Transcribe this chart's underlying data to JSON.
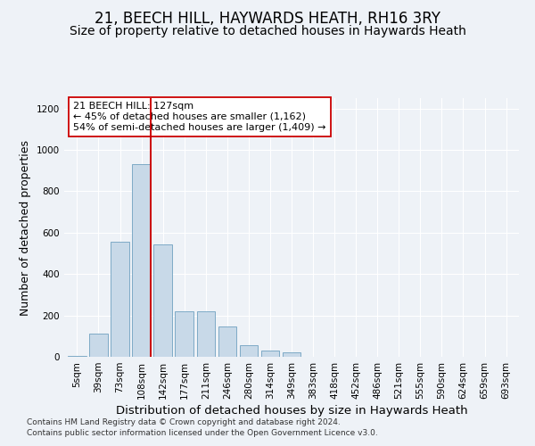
{
  "title": "21, BEECH HILL, HAYWARDS HEATH, RH16 3RY",
  "subtitle": "Size of property relative to detached houses in Haywards Heath",
  "xlabel": "Distribution of detached houses by size in Haywards Heath",
  "ylabel": "Number of detached properties",
  "categories": [
    "5sqm",
    "39sqm",
    "73sqm",
    "108sqm",
    "142sqm",
    "177sqm",
    "211sqm",
    "246sqm",
    "280sqm",
    "314sqm",
    "349sqm",
    "383sqm",
    "418sqm",
    "452sqm",
    "486sqm",
    "521sqm",
    "555sqm",
    "590sqm",
    "624sqm",
    "659sqm",
    "693sqm"
  ],
  "bar_heights": [
    5,
    110,
    555,
    930,
    545,
    220,
    220,
    145,
    55,
    30,
    20,
    0,
    0,
    0,
    0,
    0,
    0,
    0,
    0,
    0,
    0
  ],
  "bar_color": "#c8d9e8",
  "bar_edge_color": "#6fa0c0",
  "vline_index": 3,
  "vline_color": "#cc0000",
  "annotation_text": "21 BEECH HILL: 127sqm\n← 45% of detached houses are smaller (1,162)\n54% of semi-detached houses are larger (1,409) →",
  "annotation_box_facecolor": "#ffffff",
  "annotation_box_edgecolor": "#cc0000",
  "ylim": [
    0,
    1250
  ],
  "yticks": [
    0,
    200,
    400,
    600,
    800,
    1000,
    1200
  ],
  "footer1": "Contains HM Land Registry data © Crown copyright and database right 2024.",
  "footer2": "Contains public sector information licensed under the Open Government Licence v3.0.",
  "bg_color": "#eef2f7",
  "grid_color": "#ffffff",
  "title_fontsize": 12,
  "subtitle_fontsize": 10,
  "tick_fontsize": 7.5,
  "ylabel_fontsize": 9,
  "xlabel_fontsize": 9.5,
  "footer_fontsize": 6.5
}
